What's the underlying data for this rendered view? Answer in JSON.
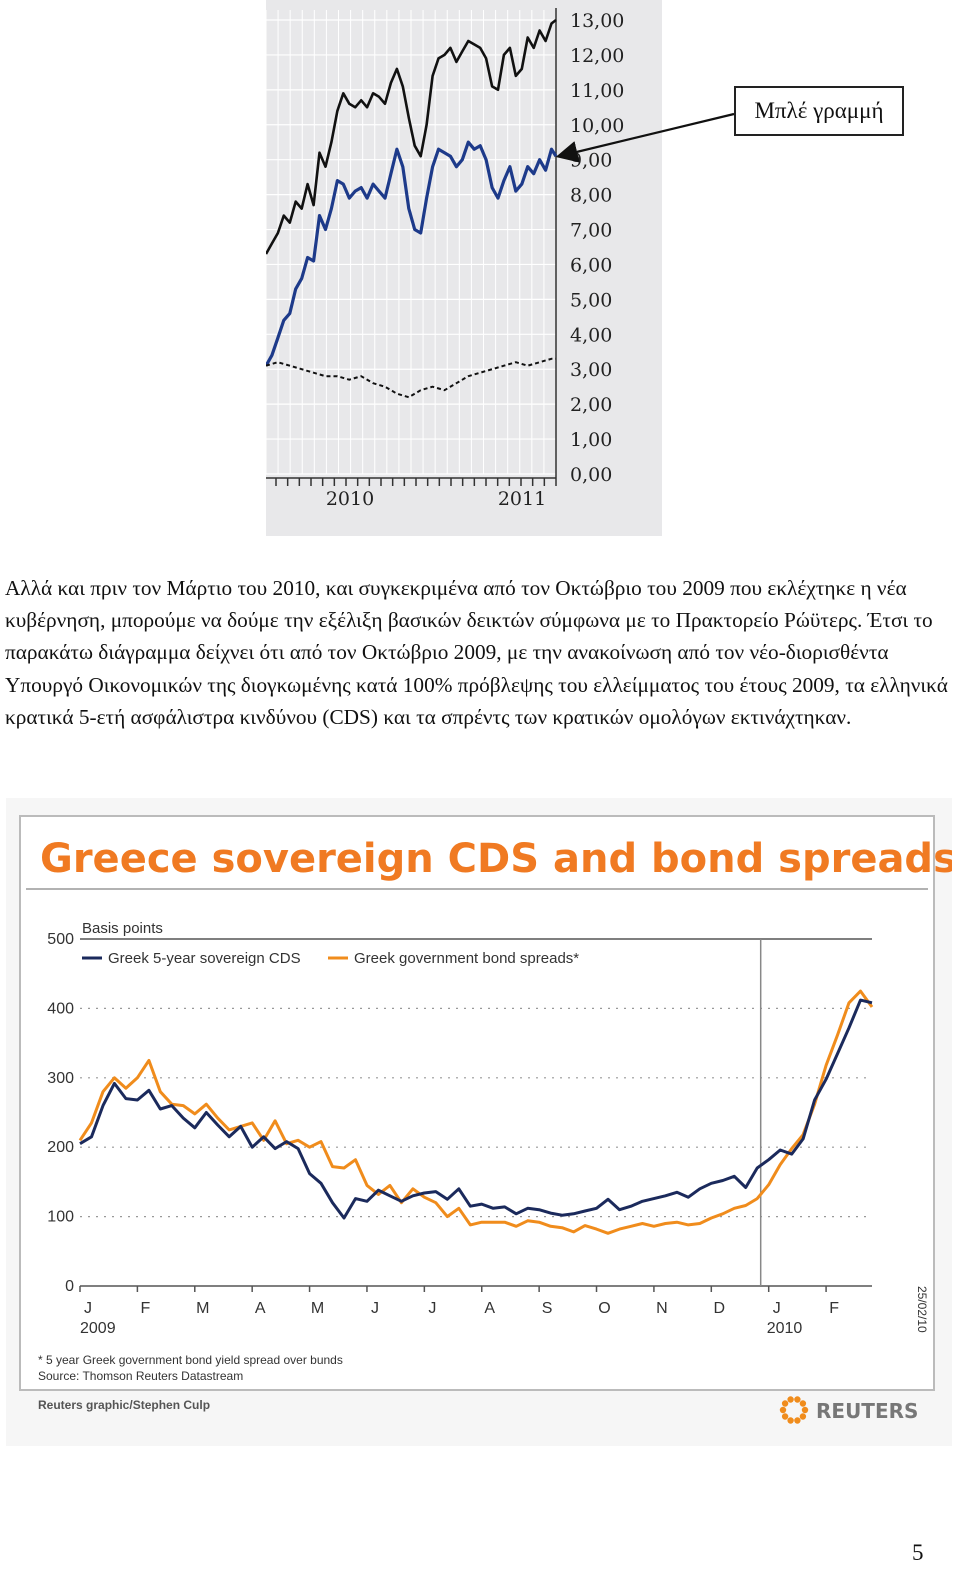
{
  "callout": {
    "label": "Μπλέ γραμμή"
  },
  "paragraph": "Αλλά και πριν τον Μάρτιο του 2010, και συγκεκριμένα από τον Οκτώβριο του 2009 που εκλέχτηκε η νέα κυβέρνηση, μπορούμε να δούμε την εξέλιξη βασικών δεικτών σύμφωνα με το Πρακτορείο Ρώϋτερς. Έτσι το παρακάτω διάγραμμα δείχνει ότι από τον Οκτώβριο 2009, με την ανακοίνωση από τον νέο-διορισθέντα Υπουργό Οικονομικών της διογκωμένης κατά 100% πρόβλεψης του ελλείμματος του έτους 2009, τα ελληνικά κρατικά 5-ετή ασφάλιστρα κινδύνου (CDS) και τα σπρέντς των κρατικών ομολόγων εκτινάχτηκαν.",
  "page_number": "5",
  "colors": {
    "navy": "#1b2a5c",
    "orange": "#f08c1c",
    "black": "#111111",
    "blue_line": "#1d3a8a"
  },
  "chart_data": [
    {
      "type": "line",
      "title": "",
      "y_ticks": [
        "13,00",
        "12,00",
        "11,00",
        "10,00",
        "9,00",
        "8,00",
        "7,00",
        "6,00",
        "5,00",
        "4,00",
        "3,00",
        "2,00",
        "1,00",
        "0,00"
      ],
      "ylim": [
        0,
        13
      ],
      "x_ticks": [
        "2010",
        "2011"
      ],
      "xlim": [
        2009.38,
        2011.33
      ],
      "series": [
        {
          "color": "#111111",
          "x": [
            2009.38,
            2009.42,
            2009.46,
            2009.5,
            2009.54,
            2009.58,
            2009.62,
            2009.66,
            2009.7,
            2009.74,
            2009.78,
            2009.82,
            2009.86,
            2009.9,
            2009.94,
            2009.98,
            2010.02,
            2010.06,
            2010.1,
            2010.14,
            2010.18,
            2010.22,
            2010.26,
            2010.3,
            2010.34,
            2010.38,
            2010.42,
            2010.46,
            2010.5,
            2010.54,
            2010.58,
            2010.62,
            2010.66,
            2010.7,
            2010.74,
            2010.78,
            2010.82,
            2010.86,
            2010.9,
            2010.94,
            2010.98,
            2011.02,
            2011.06,
            2011.1,
            2011.14,
            2011.18,
            2011.22,
            2011.26,
            2011.3,
            2011.33
          ],
          "values": [
            6.3,
            6.6,
            6.9,
            7.4,
            7.2,
            7.8,
            7.6,
            8.3,
            7.7,
            9.2,
            8.8,
            9.5,
            10.4,
            10.9,
            10.6,
            10.5,
            10.7,
            10.5,
            10.9,
            10.8,
            10.6,
            11.2,
            11.6,
            11.1,
            10.2,
            9.4,
            9.1,
            10.0,
            11.4,
            11.9,
            12.0,
            12.2,
            11.8,
            12.1,
            12.4,
            12.3,
            12.2,
            11.9,
            11.1,
            11.0,
            12.0,
            12.2,
            11.4,
            11.6,
            12.5,
            12.2,
            12.7,
            12.4,
            12.9,
            13.0
          ]
        },
        {
          "color": "#1d3a8a",
          "x": [
            2009.38,
            2009.42,
            2009.46,
            2009.5,
            2009.54,
            2009.58,
            2009.62,
            2009.66,
            2009.7,
            2009.74,
            2009.78,
            2009.82,
            2009.86,
            2009.9,
            2009.94,
            2009.98,
            2010.02,
            2010.06,
            2010.1,
            2010.14,
            2010.18,
            2010.22,
            2010.26,
            2010.3,
            2010.34,
            2010.38,
            2010.42,
            2010.46,
            2010.5,
            2010.54,
            2010.58,
            2010.62,
            2010.66,
            2010.7,
            2010.74,
            2010.78,
            2010.82,
            2010.86,
            2010.9,
            2010.94,
            2010.98,
            2011.02,
            2011.06,
            2011.1,
            2011.14,
            2011.18,
            2011.22,
            2011.26,
            2011.3,
            2011.33
          ],
          "values": [
            3.1,
            3.4,
            3.9,
            4.4,
            4.6,
            5.3,
            5.6,
            6.2,
            6.1,
            7.4,
            7.0,
            7.6,
            8.4,
            8.3,
            7.9,
            8.1,
            8.2,
            7.9,
            8.3,
            8.1,
            7.9,
            8.6,
            9.3,
            8.8,
            7.6,
            7.0,
            6.9,
            7.9,
            8.8,
            9.3,
            9.2,
            9.1,
            8.8,
            9.0,
            9.5,
            9.3,
            9.4,
            9.0,
            8.2,
            7.9,
            8.4,
            8.8,
            8.1,
            8.3,
            8.8,
            8.6,
            9.0,
            8.7,
            9.3,
            9.1
          ]
        },
        {
          "color": "#111111",
          "x": [
            2009.38,
            2009.46,
            2009.54,
            2009.62,
            2009.7,
            2009.78,
            2009.86,
            2009.94,
            2010.02,
            2010.1,
            2010.18,
            2010.26,
            2010.34,
            2010.42,
            2010.5,
            2010.58,
            2010.66,
            2010.74,
            2010.82,
            2010.9,
            2010.98,
            2011.06,
            2011.14,
            2011.22,
            2011.3,
            2011.33
          ],
          "values": [
            3.1,
            3.2,
            3.1,
            3.0,
            2.9,
            2.8,
            2.8,
            2.7,
            2.8,
            2.6,
            2.5,
            2.3,
            2.2,
            2.4,
            2.5,
            2.4,
            2.6,
            2.8,
            2.9,
            3.0,
            3.1,
            3.2,
            3.1,
            3.2,
            3.3,
            3.3
          ]
        }
      ]
    },
    {
      "type": "line",
      "title": "Greece sovereign CDS and bond spreads",
      "ylabel": "Basis points",
      "ylim": [
        0,
        500
      ],
      "y_ticks": [
        "500",
        "400",
        "300",
        "200",
        "100",
        "0"
      ],
      "categories": [
        "J",
        "F",
        "M",
        "A",
        "M",
        "J",
        "J",
        "A",
        "S",
        "O",
        "N",
        "D",
        "J",
        "F"
      ],
      "year_labels": [
        "2009",
        "2010"
      ],
      "date_label": "25/02/10",
      "footnote": "* 5 year Greek government bond yield spread over bunds",
      "source": "Source: Thomson Reuters Datastream",
      "credit": "Reuters graphic/Stephen Culp",
      "brand": "REUTERS",
      "x": [
        0.0,
        0.2,
        0.4,
        0.6,
        0.8,
        1.0,
        1.2,
        1.4,
        1.6,
        1.8,
        2.0,
        2.2,
        2.4,
        2.6,
        2.8,
        3.0,
        3.2,
        3.4,
        3.6,
        3.8,
        4.0,
        4.2,
        4.4,
        4.6,
        4.8,
        5.0,
        5.2,
        5.4,
        5.6,
        5.8,
        6.0,
        6.2,
        6.4,
        6.6,
        6.8,
        7.0,
        7.2,
        7.4,
        7.6,
        7.8,
        8.0,
        8.2,
        8.4,
        8.6,
        8.8,
        9.0,
        9.2,
        9.4,
        9.6,
        9.8,
        10.0,
        10.2,
        10.4,
        10.6,
        10.8,
        11.0,
        11.2,
        11.4,
        11.6,
        11.8,
        12.0,
        12.2,
        12.4,
        12.6,
        12.8,
        13.0,
        13.2,
        13.4,
        13.6,
        13.8
      ],
      "series": [
        {
          "name": "Greek 5-year sovereign CDS",
          "color": "#1b2a5c",
          "values": [
            205,
            215,
            260,
            292,
            270,
            268,
            282,
            255,
            260,
            242,
            228,
            250,
            232,
            215,
            230,
            200,
            215,
            198,
            208,
            198,
            162,
            148,
            120,
            98,
            126,
            122,
            138,
            130,
            122,
            130,
            134,
            136,
            125,
            140,
            115,
            118,
            112,
            114,
            104,
            112,
            110,
            105,
            102,
            104,
            108,
            112,
            125,
            110,
            115,
            122,
            126,
            130,
            135,
            128,
            140,
            148,
            152,
            158,
            142,
            170,
            182,
            196,
            190,
            212,
            268,
            298,
            335,
            372,
            412,
            408
          ]
        },
        {
          "name": "Greek government bond spreads*",
          "color": "#f08c1c",
          "values": [
            210,
            235,
            280,
            300,
            285,
            300,
            325,
            280,
            262,
            260,
            248,
            262,
            242,
            225,
            230,
            235,
            210,
            238,
            205,
            210,
            200,
            208,
            172,
            170,
            182,
            145,
            132,
            145,
            120,
            140,
            128,
            120,
            100,
            112,
            88,
            92,
            92,
            92,
            86,
            94,
            92,
            86,
            84,
            78,
            87,
            82,
            76,
            82,
            86,
            90,
            86,
            90,
            92,
            88,
            90,
            98,
            104,
            112,
            116,
            126,
            146,
            175,
            198,
            218,
            262,
            318,
            362,
            408,
            425,
            402
          ]
        }
      ]
    }
  ]
}
